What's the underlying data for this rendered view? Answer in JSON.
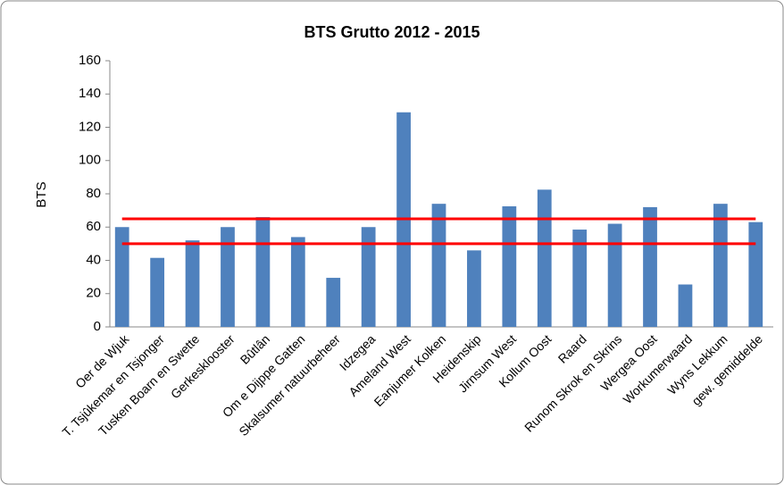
{
  "chart_data": {
    "type": "bar",
    "title": "BTS Grutto 2012  - 2015",
    "y_label": "BTS",
    "categories": [
      "Oer de Wjuk",
      "T. Tsjûkemar en Tsjonger",
      "Tusken Boarn en Swette",
      "Gerkesklooster",
      "Bûtlân",
      "Om e Dijppe Gatten",
      "Skalsumer natuurbeheer",
      "Idzegea",
      "Ameland West",
      "Eanjumer Kolken",
      "Heidenskip",
      "Jirnsum West",
      "Kollum Oost",
      "Raard",
      "Runom Skrok en Skrins",
      "Wergea Oost",
      "Workumerwaard",
      "Wyns Lekkum",
      "gew. gemiddelde"
    ],
    "values": [
      60,
      41.5,
      52,
      60,
      66,
      54,
      29.5,
      60,
      129,
      74,
      46,
      72.5,
      82.5,
      58.5,
      62,
      72,
      25.5,
      74,
      63
    ],
    "color": "#4f81bd",
    "ylim": [
      0,
      160
    ],
    "yticks": [
      0,
      20,
      40,
      60,
      80,
      100,
      120,
      140,
      160
    ],
    "grid": false,
    "reference_lines": [
      {
        "value": 65,
        "color": "#ff0000"
      },
      {
        "value": 50,
        "color": "#ff0000"
      }
    ]
  }
}
